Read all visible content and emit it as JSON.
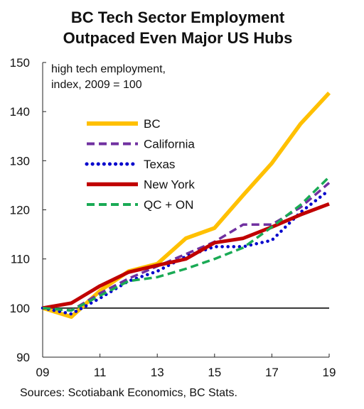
{
  "title_lines": [
    "BC Tech Sector Employment",
    "Outpaced Even Major US Hubs"
  ],
  "annotation_lines": [
    "high tech employment,",
    "index, 2009 = 100"
  ],
  "source": "Sources: Scotiabank Economics, BC Stats.",
  "chart_data": {
    "type": "line",
    "title": "BC Tech Sector Employment Outpaced Even Major US Hubs",
    "ylabel": "high tech employment, index, 2009 = 100",
    "x": [
      2009,
      2010,
      2011,
      2012,
      2013,
      2014,
      2015,
      2016,
      2017,
      2018,
      2019
    ],
    "xticks": [
      2009,
      2011,
      2013,
      2015,
      2017,
      2019
    ],
    "xtick_labels": [
      "09",
      "11",
      "13",
      "15",
      "17",
      "19"
    ],
    "ylim": [
      90,
      150
    ],
    "yticks": [
      90,
      100,
      110,
      120,
      130,
      140,
      150
    ],
    "reference_line": 100,
    "legend_position": "upper-left",
    "series": [
      {
        "name": "BC",
        "color": "#FFC000",
        "style": "solid",
        "values": [
          100,
          98.2,
          103.5,
          107.5,
          109,
          114.2,
          116.3,
          123,
          129.5,
          137.5,
          143.8
        ]
      },
      {
        "name": "California",
        "color": "#7030A0",
        "style": "dashed",
        "values": [
          100,
          99.5,
          103,
          106,
          108.5,
          111,
          113.5,
          117,
          117,
          120.5,
          125.5
        ]
      },
      {
        "name": "Texas",
        "color": "#0000CC",
        "style": "dotted",
        "values": [
          100,
          98.8,
          102,
          105.5,
          107.5,
          110.5,
          112.5,
          112.5,
          113.8,
          119.5,
          124
        ]
      },
      {
        "name": "New York",
        "color": "#C00000",
        "style": "solid",
        "values": [
          100,
          101,
          104.5,
          107.3,
          108.7,
          110,
          113.3,
          114.2,
          116.5,
          119,
          121.2
        ]
      },
      {
        "name": "QC + ON",
        "color": "#1AAA55",
        "style": "dashed",
        "values": [
          100,
          99.5,
          102.5,
          105.5,
          106.3,
          108,
          110,
          112.3,
          116.5,
          121,
          126.7
        ]
      }
    ]
  }
}
